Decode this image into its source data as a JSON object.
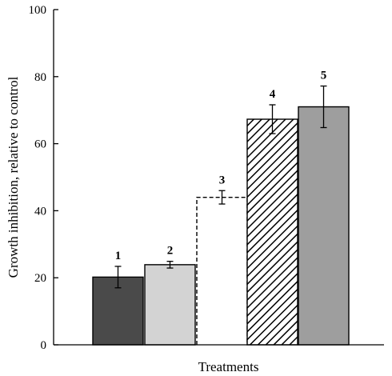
{
  "chart_data": {
    "type": "bar",
    "title": "",
    "xlabel": "Treatments",
    "ylabel": "Growth inhibition, relative to control",
    "ylim": [
      0,
      100
    ],
    "yticks": [
      0,
      20,
      40,
      60,
      80,
      100
    ],
    "grid": false,
    "categories": [
      "1",
      "2",
      "3",
      "4",
      "5"
    ],
    "values": [
      20.2,
      23.9,
      44.0,
      67.3,
      71.0
    ],
    "errors": [
      3.2,
      1.0,
      2.0,
      4.3,
      6.2
    ],
    "fills": [
      "solid",
      "solid",
      "none-dashed",
      "hatched",
      "solid"
    ],
    "colors": [
      "#4a4a4a",
      "#d3d3d3",
      "#ffffff",
      "#000000",
      "#9e9e9e"
    ]
  }
}
